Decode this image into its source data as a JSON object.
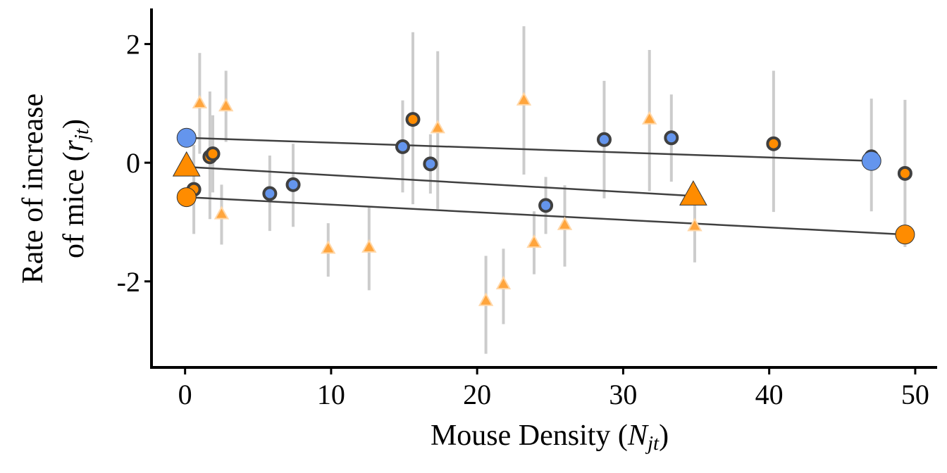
{
  "chart_data": {
    "type": "scatter",
    "title": "",
    "xlabel": "Mouse Density (N_jt)",
    "xlabel_parts": {
      "prefix": "Mouse Density (",
      "var": "N",
      "sub": "jt",
      "suffix": ")"
    },
    "ylabel_line1": "Rate of increase",
    "ylabel_line2_parts": {
      "prefix": "of mice (",
      "var": "r",
      "sub": "jt",
      "suffix": ")"
    },
    "xlim": [
      -2.3,
      51.5
    ],
    "ylim": [
      -3.45,
      2.6
    ],
    "x_ticks": [
      0,
      10,
      20,
      30,
      40,
      50
    ],
    "x_tick_labels": [
      "0",
      "10",
      "20",
      "30",
      "40",
      "50"
    ],
    "y_ticks": [
      2,
      0,
      -2
    ],
    "y_tick_labels": [
      "2",
      "0",
      "-2"
    ],
    "grid": false,
    "legend": "none",
    "colors": {
      "blue": "#6495ed",
      "orange": "#ff8c00",
      "orange_light": "#ffa53d",
      "errorbar": "#cccccc",
      "outline": "#404040",
      "fit_line": "#404040"
    },
    "series": [
      {
        "group": "blue-circles",
        "marker": "circle",
        "color": "#6495ed",
        "points": [
          {
            "x": 5.8,
            "y": -0.52,
            "lo": -1.15,
            "hi": 0.12
          },
          {
            "x": 7.4,
            "y": -0.37,
            "lo": -1.08,
            "hi": 0.32
          },
          {
            "x": 14.9,
            "y": 0.27,
            "lo": -0.5,
            "hi": 1.05
          },
          {
            "x": 16.8,
            "y": -0.02,
            "lo": -0.52,
            "hi": 0.48
          },
          {
            "x": 24.7,
            "y": -0.72,
            "lo": -1.2,
            "hi": -0.24
          },
          {
            "x": 28.7,
            "y": 0.39,
            "lo": -0.6,
            "hi": 1.38
          },
          {
            "x": 33.3,
            "y": 0.42,
            "lo": -0.32,
            "hi": 1.15
          },
          {
            "x": 47.0,
            "y": 0.1,
            "lo": -0.82,
            "hi": 1.08
          }
        ]
      },
      {
        "group": "orange-circles",
        "marker": "circle",
        "color": "#ff8c00",
        "points": [
          {
            "x": 0.6,
            "y": -0.45,
            "lo": -1.2,
            "hi": 0.3
          },
          {
            "x": 1.7,
            "y": 0.1,
            "lo": -0.95,
            "hi": 1.2
          },
          {
            "x": 1.9,
            "y": 0.15,
            "lo": -0.5,
            "hi": 0.8
          },
          {
            "x": 15.6,
            "y": 0.73,
            "lo": -0.7,
            "hi": 2.2
          },
          {
            "x": 40.3,
            "y": 0.32,
            "lo": -0.83,
            "hi": 1.55
          },
          {
            "x": 49.3,
            "y": -0.18,
            "lo": -1.42,
            "hi": 1.06
          }
        ]
      },
      {
        "group": "orange-triangles",
        "marker": "triangle",
        "color": "#ffa53d",
        "points": [
          {
            "x": 1.0,
            "y": 1.0,
            "lo": 0.15,
            "hi": 1.85
          },
          {
            "x": 2.5,
            "y": -0.87,
            "lo": -1.38,
            "hi": -0.37
          },
          {
            "x": 2.8,
            "y": 0.95,
            "lo": 0.35,
            "hi": 1.55
          },
          {
            "x": 9.8,
            "y": -1.45,
            "lo": -1.92,
            "hi": -1.02
          },
          {
            "x": 12.6,
            "y": -1.43,
            "lo": -2.15,
            "hi": -0.75
          },
          {
            "x": 17.3,
            "y": 0.58,
            "lo": -0.78,
            "hi": 1.88
          },
          {
            "x": 20.6,
            "y": -2.33,
            "lo": -3.22,
            "hi": -1.57
          },
          {
            "x": 21.8,
            "y": -2.05,
            "lo": -2.72,
            "hi": -1.45
          },
          {
            "x": 23.2,
            "y": 1.05,
            "lo": -0.2,
            "hi": 2.3
          },
          {
            "x": 23.9,
            "y": -1.35,
            "lo": -1.88,
            "hi": -0.82
          },
          {
            "x": 26.0,
            "y": -1.05,
            "lo": -1.75,
            "hi": -0.38
          },
          {
            "x": 31.8,
            "y": 0.73,
            "lo": -0.48,
            "hi": 1.9
          },
          {
            "x": 34.9,
            "y": -1.07,
            "lo": -1.68,
            "hi": -0.45
          }
        ]
      }
    ],
    "fit_lines": [
      {
        "group": "blue",
        "x": [
          0.1,
          47.0
        ],
        "y": [
          0.42,
          0.03
        ],
        "endpoint_marker": "circle",
        "endpoint_color": "#6495ed"
      },
      {
        "group": "orange-triangle",
        "x": [
          0.1,
          34.8
        ],
        "y": [
          -0.07,
          -0.56
        ],
        "endpoint_marker": "triangle",
        "endpoint_color": "#ff8c00"
      },
      {
        "group": "orange-circle",
        "x": [
          0.1,
          49.3
        ],
        "y": [
          -0.58,
          -1.21
        ],
        "endpoint_marker": "circle",
        "endpoint_color": "#ff8c00"
      }
    ]
  }
}
